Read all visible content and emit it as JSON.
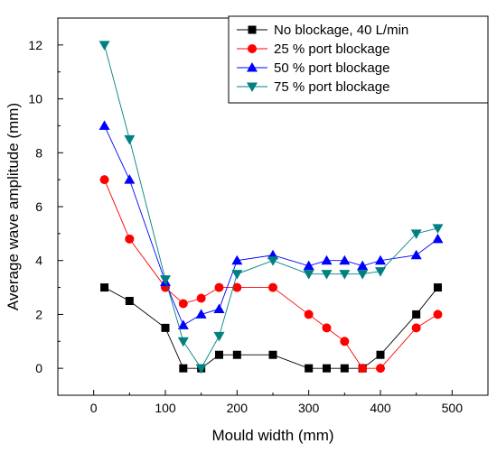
{
  "chart_data": {
    "type": "line",
    "title": "",
    "xlabel": "Mould width (mm)",
    "ylabel": "Average wave amplitude (mm)",
    "xlim": [
      -50,
      550
    ],
    "ylim": [
      -1,
      13
    ],
    "xticks": [
      0,
      100,
      200,
      300,
      400,
      500
    ],
    "yticks": [
      0,
      2,
      4,
      6,
      8,
      10,
      12
    ],
    "grid": false,
    "legend_position": "top-right",
    "series": [
      {
        "name": "No blockage, 40 L/min",
        "color": "#000000",
        "marker": "square",
        "x": [
          15,
          50,
          100,
          125,
          150,
          175,
          200,
          250,
          300,
          325,
          350,
          375,
          400,
          450,
          480
        ],
        "y": [
          3,
          2.5,
          1.5,
          0,
          0,
          0.5,
          0.5,
          0.5,
          0,
          0,
          0,
          0,
          0.5,
          2,
          3
        ]
      },
      {
        "name": "25 % port blockage",
        "color": "#ff0000",
        "marker": "circle",
        "x": [
          15,
          50,
          100,
          125,
          150,
          175,
          200,
          250,
          300,
          325,
          350,
          375,
          400,
          450,
          480
        ],
        "y": [
          7,
          4.8,
          3,
          2.4,
          2.6,
          3,
          3,
          3,
          2,
          1.5,
          1,
          0,
          0,
          1.5,
          2
        ]
      },
      {
        "name": "50 % port blockage",
        "color": "#0000ff",
        "marker": "triangle-up",
        "x": [
          15,
          50,
          100,
          125,
          150,
          175,
          200,
          250,
          300,
          325,
          350,
          375,
          400,
          450,
          480
        ],
        "y": [
          9,
          7,
          3.2,
          1.6,
          2,
          2.2,
          4,
          4.2,
          3.8,
          4,
          4,
          3.8,
          4,
          4.2,
          4.8
        ]
      },
      {
        "name": "75 % port blockage",
        "color": "#008080",
        "marker": "triangle-down",
        "x": [
          15,
          50,
          100,
          125,
          150,
          175,
          200,
          250,
          300,
          325,
          350,
          375,
          400,
          450,
          480
        ],
        "y": [
          12,
          8.5,
          3.3,
          1,
          0,
          1.2,
          3.5,
          4,
          3.5,
          3.5,
          3.5,
          3.5,
          3.6,
          5,
          5.2
        ]
      }
    ]
  }
}
